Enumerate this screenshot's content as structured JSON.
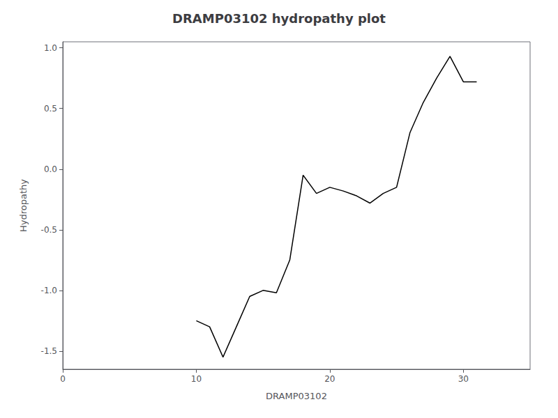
{
  "chart_data": {
    "type": "line",
    "title": "DRAMP03102 hydropathy plot",
    "xlabel": "DRAMP03102",
    "ylabel": "Hydropathy",
    "x": [
      10,
      11,
      12,
      13,
      14,
      15,
      16,
      17,
      18,
      19,
      20,
      21,
      22,
      23,
      24,
      25,
      26,
      27,
      28,
      29,
      30,
      31
    ],
    "values": [
      -1.25,
      -1.3,
      -1.55,
      -1.3,
      -1.05,
      -1.0,
      -1.02,
      -0.75,
      -0.05,
      -0.2,
      -0.15,
      -0.18,
      -0.22,
      -0.28,
      -0.2,
      -0.15,
      0.3,
      0.55,
      0.75,
      0.93,
      0.72,
      0.72
    ],
    "color": "#000000",
    "xlim": [
      0,
      35
    ],
    "xticks": [
      0,
      10,
      20,
      30
    ],
    "ylim": [
      -1.65,
      1.05
    ],
    "yticks": [
      -1.5,
      {
        "value": -1.0,
        "label": "-1.0"
      },
      -0.5,
      {
        "value": 0.0,
        "label": "0.0"
      },
      0.5,
      {
        "value": 1.0,
        "label": "1.0"
      }
    ],
    "grid": false
  }
}
